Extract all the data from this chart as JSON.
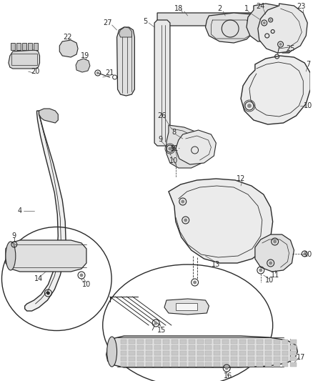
{
  "bg_color": "#ffffff",
  "line_color": "#2a2a2a",
  "fig_width": 4.38,
  "fig_height": 5.33,
  "dpi": 100
}
